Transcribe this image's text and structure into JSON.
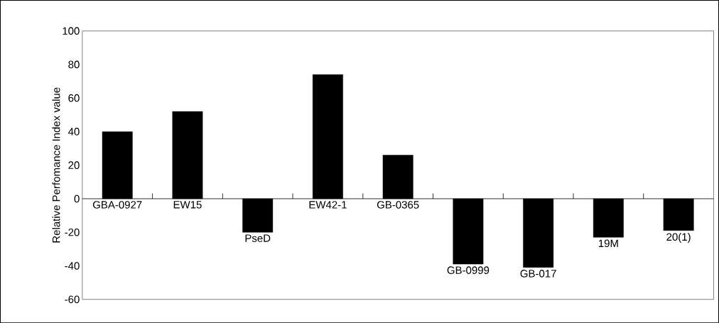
{
  "chart_data": {
    "type": "bar",
    "ylabel": "Relative Perfomance Index value",
    "categories": [
      "GBA-0927",
      "EW15",
      "PseD",
      "EW42-1",
      "GB-0365",
      "GB-0999",
      "GB-017",
      "19M",
      "20(1)"
    ],
    "values": [
      40,
      52,
      -20,
      74,
      26,
      -39,
      -41,
      -23,
      -19
    ],
    "color": "#000000",
    "ylim": [
      -60,
      100
    ],
    "yticks": [
      -60,
      -40,
      -20,
      0,
      20,
      40,
      60,
      80,
      100
    ]
  }
}
